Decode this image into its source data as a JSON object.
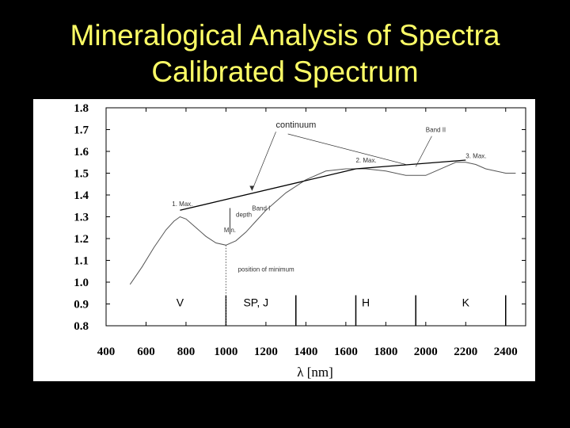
{
  "title": {
    "line1": "Mineralogical Analysis of Spectra",
    "line2": "Calibrated Spectrum"
  },
  "colors": {
    "background": "#000000",
    "title": "#ffff66",
    "plot_background": "#ffffff",
    "curve": "#555555"
  },
  "chart_data": {
    "type": "line",
    "xlabel": "λ [nm]",
    "ylabel": "",
    "xlim": [
      400,
      2500
    ],
    "ylim": [
      0.8,
      1.8
    ],
    "x_ticks": [
      400,
      600,
      800,
      1000,
      1200,
      1400,
      1600,
      1800,
      2000,
      2200,
      2400
    ],
    "y_ticks": [
      "0.8",
      "0.9",
      "1.0",
      "1.1",
      "1.2",
      "1.3",
      "1.4",
      "1.5",
      "1.6",
      "1.7",
      "1.8"
    ],
    "series": [
      {
        "x": [
          520,
          580,
          640,
          700,
          740,
          770,
          800,
          850,
          900,
          950,
          1000,
          1050,
          1100,
          1150,
          1200,
          1300,
          1400,
          1500,
          1600,
          1700,
          1800,
          1900,
          2000,
          2050,
          2100,
          2150,
          2200,
          2250,
          2300,
          2350,
          2400,
          2450
        ],
        "y": [
          0.99,
          1.07,
          1.16,
          1.24,
          1.28,
          1.3,
          1.29,
          1.25,
          1.21,
          1.18,
          1.17,
          1.19,
          1.23,
          1.28,
          1.33,
          1.41,
          1.47,
          1.51,
          1.52,
          1.52,
          1.51,
          1.49,
          1.49,
          1.51,
          1.53,
          1.55,
          1.55,
          1.54,
          1.52,
          1.51,
          1.5,
          1.5
        ]
      }
    ],
    "continuum": {
      "x": [
        770,
        1650,
        2200
      ],
      "y": [
        1.33,
        1.52,
        1.56
      ]
    },
    "band_boundaries_x": [
      1000,
      1350,
      1650,
      1950,
      2400
    ],
    "band_labels": [
      {
        "label": "V",
        "x": 770
      },
      {
        "label": "SP, J",
        "x": 1150
      },
      {
        "label": "H",
        "x": 1700
      },
      {
        "label": "K",
        "x": 2200
      }
    ],
    "annotations": [
      {
        "text": "continuum",
        "x": 1250,
        "y": 1.71
      },
      {
        "text": "Band II",
        "x": 2000,
        "y": 1.69
      },
      {
        "text": "2. Max.",
        "x": 1650,
        "y": 1.55
      },
      {
        "text": "3. Max.",
        "x": 2200,
        "y": 1.57
      },
      {
        "text": "1. Max.",
        "x": 730,
        "y": 1.35
      },
      {
        "text": "Band I",
        "x": 1130,
        "y": 1.33
      },
      {
        "text": "depth",
        "x": 1050,
        "y": 1.3
      },
      {
        "text": "Min.",
        "x": 990,
        "y": 1.23
      },
      {
        "text": "position of minimum",
        "x": 1060,
        "y": 1.05
      }
    ]
  }
}
